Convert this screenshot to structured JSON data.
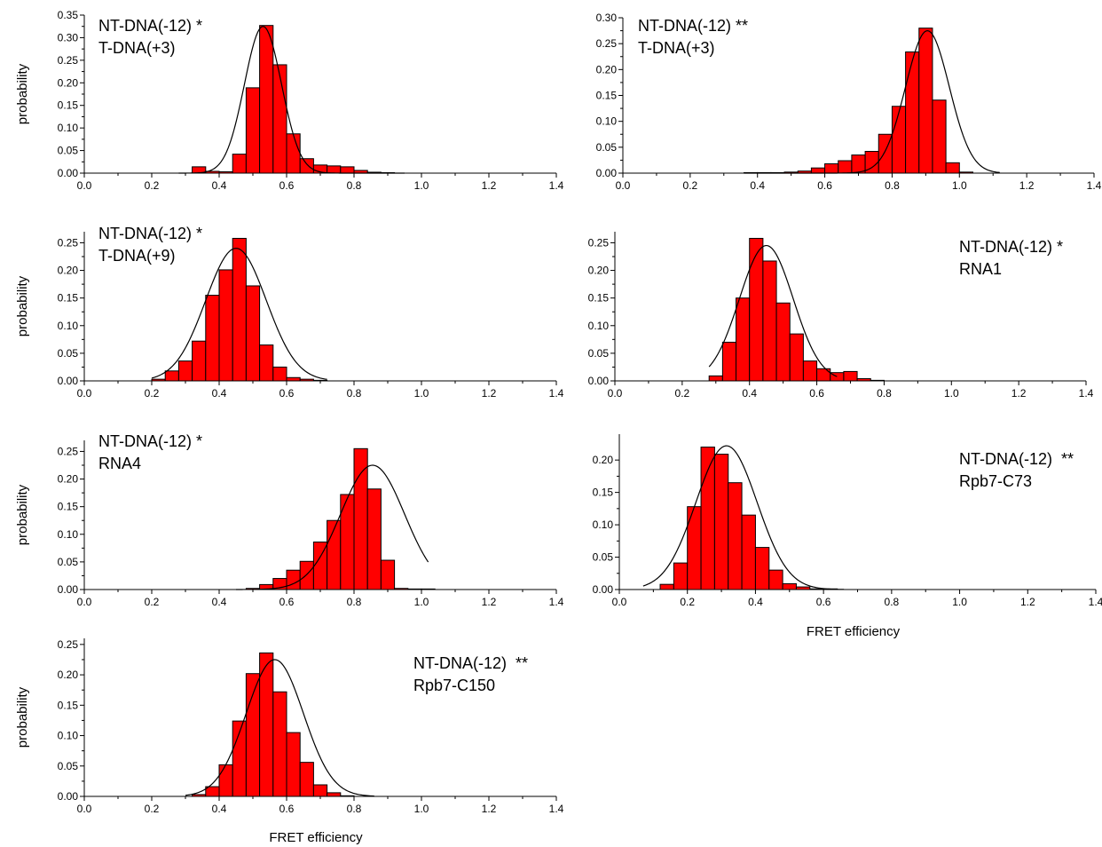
{
  "chart_data": [
    {
      "id": "a",
      "type": "bar",
      "ylabel": "probability",
      "xlabel": "",
      "xlim": [
        0.0,
        1.4
      ],
      "ylim": [
        0.0,
        0.35
      ],
      "xticks": [
        "0.0",
        "0.2",
        "0.4",
        "0.6",
        "0.8",
        "1.0",
        "1.2",
        "1.4"
      ],
      "yticks": [
        "0.00",
        "0.05",
        "0.10",
        "0.15",
        "0.20",
        "0.25",
        "0.30",
        "0.35"
      ],
      "annotation": [
        "NT-DNA(-12) *",
        "T-DNA(+3)"
      ],
      "bin_width": 0.04,
      "bins": [
        0.32,
        0.36,
        0.4,
        0.44,
        0.48,
        0.52,
        0.56,
        0.6,
        0.64,
        0.68,
        0.72,
        0.76,
        0.8,
        0.84,
        0.88
      ],
      "values": [
        0.014,
        0.004,
        0.003,
        0.042,
        0.189,
        0.327,
        0.24,
        0.087,
        0.032,
        0.018,
        0.016,
        0.014,
        0.006,
        0.002,
        0.001
      ],
      "fit": {
        "type": "gaussian",
        "center": 0.53,
        "sigma": 0.055,
        "amplitude": 0.325,
        "range": [
          0.28,
          0.95
        ]
      }
    },
    {
      "id": "b",
      "type": "bar",
      "ylabel": "",
      "xlabel": "",
      "xlim": [
        0.0,
        1.4
      ],
      "ylim": [
        0.0,
        0.3
      ],
      "xticks": [
        "0.0",
        "0.2",
        "0.4",
        "0.6",
        "0.8",
        "1.0",
        "1.2",
        "1.4"
      ],
      "yticks": [
        "0.00",
        "0.05",
        "0.10",
        "0.15",
        "0.20",
        "0.25",
        "0.30"
      ],
      "annotation": [
        "NT-DNA(-12) **",
        "T-DNA(+3)"
      ],
      "bin_width": 0.04,
      "bins": [
        0.36,
        0.4,
        0.44,
        0.48,
        0.52,
        0.56,
        0.6,
        0.64,
        0.68,
        0.72,
        0.76,
        0.8,
        0.84,
        0.88,
        0.92,
        0.96,
        1.0
      ],
      "values": [
        0.001,
        0.001,
        0.001,
        0.002,
        0.004,
        0.01,
        0.018,
        0.024,
        0.035,
        0.042,
        0.075,
        0.129,
        0.234,
        0.28,
        0.141,
        0.02,
        0.002
      ],
      "fit": {
        "type": "gaussian",
        "center": 0.905,
        "sigma": 0.065,
        "amplitude": 0.275,
        "range": [
          0.36,
          1.12
        ]
      }
    },
    {
      "id": "c",
      "type": "bar",
      "ylabel": "probability",
      "xlabel": "",
      "xlim": [
        0.0,
        1.4
      ],
      "ylim": [
        0.0,
        0.27
      ],
      "xticks": [
        "0.0",
        "0.2",
        "0.4",
        "0.6",
        "0.8",
        "1.0",
        "1.2",
        "1.4"
      ],
      "yticks": [
        "0.00",
        "0.05",
        "0.10",
        "0.15",
        "0.20",
        "0.25"
      ],
      "annotation": [
        "NT-DNA(-12) *",
        "T-DNA(+9)"
      ],
      "bin_width": 0.04,
      "bins": [
        0.2,
        0.24,
        0.28,
        0.32,
        0.36,
        0.4,
        0.44,
        0.48,
        0.52,
        0.56,
        0.6,
        0.64,
        0.68
      ],
      "values": [
        0.003,
        0.018,
        0.036,
        0.072,
        0.155,
        0.201,
        0.258,
        0.172,
        0.065,
        0.025,
        0.006,
        0.003,
        0.001
      ],
      "fit": {
        "type": "gaussian",
        "center": 0.45,
        "sigma": 0.09,
        "amplitude": 0.24,
        "range": [
          0.2,
          0.72
        ]
      }
    },
    {
      "id": "d",
      "type": "bar",
      "ylabel": "",
      "xlabel": "",
      "xlim": [
        0.0,
        1.4
      ],
      "ylim": [
        0.0,
        0.27
      ],
      "xticks": [
        "0.0",
        "0.2",
        "0.4",
        "0.6",
        "0.8",
        "1.0",
        "1.2",
        "1.4"
      ],
      "yticks": [
        "0.00",
        "0.05",
        "0.10",
        "0.15",
        "0.20",
        "0.25"
      ],
      "annotation": [
        "NT-DNA(-12) *",
        "RNA1"
      ],
      "bin_width": 0.04,
      "bins": [
        0.28,
        0.32,
        0.36,
        0.4,
        0.44,
        0.48,
        0.52,
        0.56,
        0.6,
        0.64,
        0.68,
        0.72,
        0.76
      ],
      "values": [
        0.009,
        0.07,
        0.15,
        0.258,
        0.217,
        0.141,
        0.085,
        0.036,
        0.022,
        0.015,
        0.017,
        0.004,
        0.001
      ],
      "fit": {
        "type": "gaussian",
        "center": 0.45,
        "sigma": 0.08,
        "amplitude": 0.245,
        "range": [
          0.28,
          0.66
        ]
      }
    },
    {
      "id": "e",
      "type": "bar",
      "ylabel": "probability",
      "xlabel": "",
      "xlim": [
        0.0,
        1.4
      ],
      "ylim": [
        0.0,
        0.27
      ],
      "xticks": [
        "0.0",
        "0.2",
        "0.4",
        "0.6",
        "0.8",
        "1.0",
        "1.2",
        "1.4"
      ],
      "yticks": [
        "0.00",
        "0.05",
        "0.10",
        "0.15",
        "0.20",
        "0.25"
      ],
      "annotation": [
        "NT-DNA(-12) *",
        "RNA4"
      ],
      "bin_width": 0.04,
      "bins": [
        0.48,
        0.52,
        0.56,
        0.6,
        0.64,
        0.68,
        0.72,
        0.76,
        0.8,
        0.84,
        0.88,
        0.92,
        0.96,
        1.0
      ],
      "values": [
        0.002,
        0.009,
        0.02,
        0.035,
        0.051,
        0.086,
        0.125,
        0.172,
        0.255,
        0.182,
        0.053,
        0.002,
        0.001,
        0.001
      ],
      "fit": {
        "type": "gaussian",
        "center": 0.855,
        "sigma": 0.095,
        "amplitude": 0.225,
        "range": [
          0.45,
          1.02
        ]
      }
    },
    {
      "id": "f",
      "type": "bar",
      "ylabel": "",
      "xlabel": "FRET efficiency",
      "xlim": [
        0.0,
        1.4
      ],
      "ylim": [
        0.0,
        0.24
      ],
      "xticks": [
        "0.0",
        "0.2",
        "0.4",
        "0.6",
        "0.8",
        "1.0",
        "1.2",
        "1.4"
      ],
      "yticks": [
        "0.00",
        "0.05",
        "0.10",
        "0.15",
        "0.20"
      ],
      "annotation": [
        "NT-DNA(-12)  **",
        "Rpb7-C73"
      ],
      "bin_width": 0.04,
      "bins": [
        0.12,
        0.16,
        0.2,
        0.24,
        0.28,
        0.32,
        0.36,
        0.4,
        0.44,
        0.48,
        0.52,
        0.56,
        0.6
      ],
      "values": [
        0.008,
        0.041,
        0.128,
        0.22,
        0.209,
        0.165,
        0.115,
        0.065,
        0.03,
        0.009,
        0.004,
        0.001,
        0.001
      ],
      "fit": {
        "type": "gaussian",
        "center": 0.315,
        "sigma": 0.09,
        "amplitude": 0.222,
        "range": [
          0.07,
          0.66
        ]
      }
    },
    {
      "id": "g",
      "type": "bar",
      "ylabel": "probability",
      "xlabel": "FRET efficiency",
      "xlim": [
        0.0,
        1.4
      ],
      "ylim": [
        0.0,
        0.26
      ],
      "xticks": [
        "0.0",
        "0.2",
        "0.4",
        "0.6",
        "0.8",
        "1.0",
        "1.2",
        "1.4"
      ],
      "yticks": [
        "0.00",
        "0.05",
        "0.10",
        "0.15",
        "0.20",
        "0.25"
      ],
      "annotation": [
        "NT-DNA(-12)  **",
        "Rpb7-C150"
      ],
      "bin_width": 0.04,
      "bins": [
        0.32,
        0.36,
        0.4,
        0.44,
        0.48,
        0.52,
        0.56,
        0.6,
        0.64,
        0.68,
        0.72,
        0.76
      ],
      "values": [
        0.003,
        0.016,
        0.052,
        0.124,
        0.202,
        0.236,
        0.172,
        0.105,
        0.056,
        0.019,
        0.006,
        0.001
      ],
      "fit": {
        "type": "gaussian",
        "center": 0.565,
        "sigma": 0.085,
        "amplitude": 0.225,
        "range": [
          0.3,
          0.86
        ]
      }
    }
  ]
}
